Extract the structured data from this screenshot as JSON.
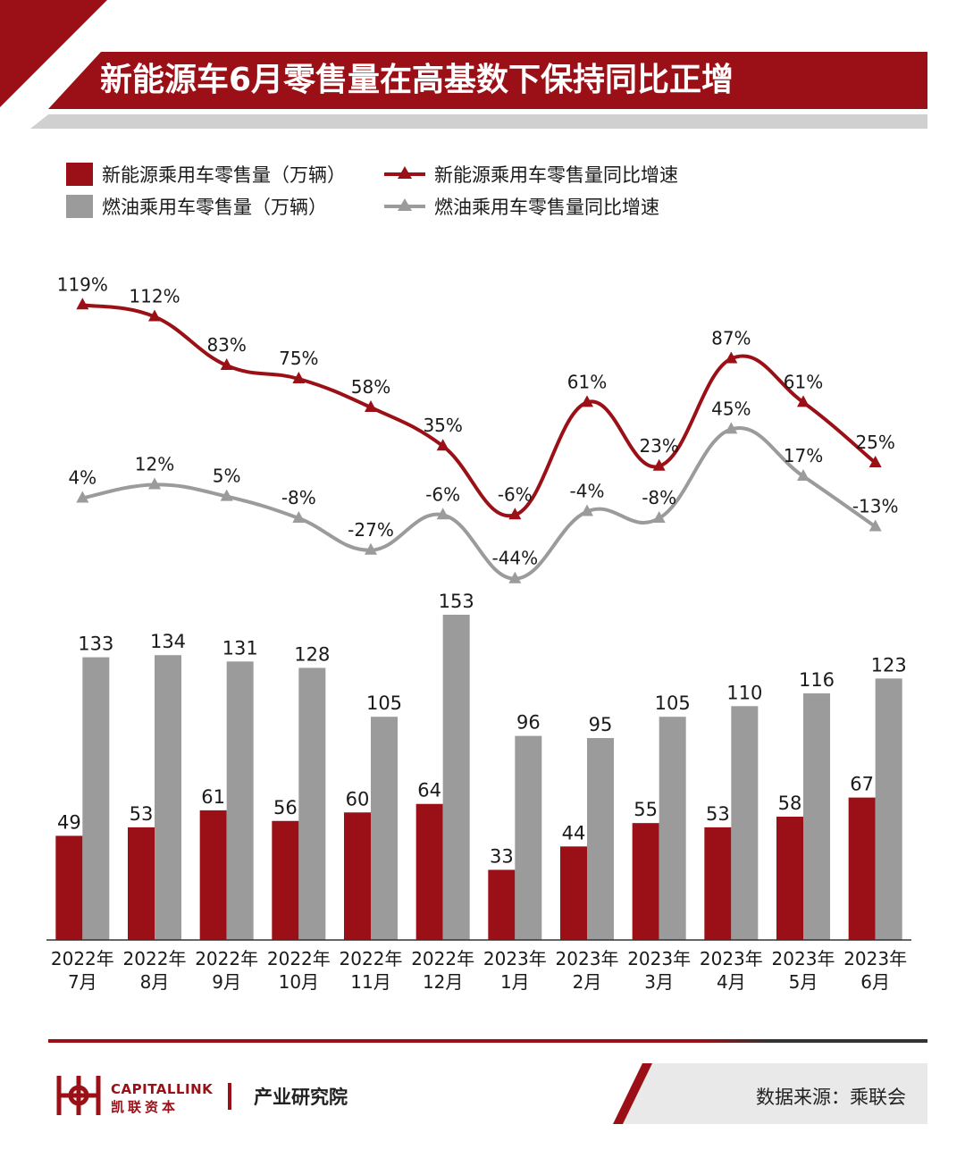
{
  "header": {
    "title": "新能源车6月零售量在高基数下保持同比正增"
  },
  "legend": {
    "nev_sales": "新能源乘用车零售量（万辆）",
    "fuel_sales": "燃油乘用车零售量（万辆）",
    "nev_yoy": "新能源乘用车零售量同比增速",
    "fuel_yoy": "燃油乘用车零售量同比增速"
  },
  "colors": {
    "nev": "#9b1016",
    "fuel": "#9b9b9b",
    "accent": "#9b1016"
  },
  "chart_data": {
    "type": "bar",
    "categories": [
      "2022年\n7月",
      "2022年\n8月",
      "2022年\n9月",
      "2022年\n10月",
      "2022年\n11月",
      "2022年\n12月",
      "2023年\n1月",
      "2023年\n2月",
      "2023年\n3月",
      "2023年\n4月",
      "2023年\n5月",
      "2023年\n6月"
    ],
    "series": [
      {
        "name": "新能源乘用车零售量（万辆）",
        "type": "bar",
        "values": [
          49,
          53,
          61,
          56,
          60,
          64,
          33,
          44,
          55,
          53,
          58,
          67
        ]
      },
      {
        "name": "燃油乘用车零售量（万辆）",
        "type": "bar",
        "values": [
          133,
          134,
          131,
          128,
          105,
          153,
          96,
          95,
          105,
          110,
          116,
          123
        ]
      },
      {
        "name": "新能源乘用车零售量同比增速",
        "type": "line",
        "unit": "%",
        "values": [
          119,
          112,
          83,
          75,
          58,
          35,
          -6,
          61,
          23,
          87,
          61,
          25
        ]
      },
      {
        "name": "燃油乘用车零售量同比增速",
        "type": "line",
        "unit": "%",
        "values": [
          4,
          12,
          5,
          -8,
          -27,
          -6,
          -44,
          -4,
          -8,
          45,
          17,
          -13
        ]
      }
    ],
    "bar_ylim": [
      0,
      155
    ],
    "line_ylim": [
      -50,
      125
    ],
    "grid": false,
    "legend_position": "top-left"
  },
  "footer": {
    "brand_en": "CAPITALLINK",
    "brand_cn": "凯联资本",
    "institute": "产业研究院",
    "source": "数据来源：乘联会"
  }
}
